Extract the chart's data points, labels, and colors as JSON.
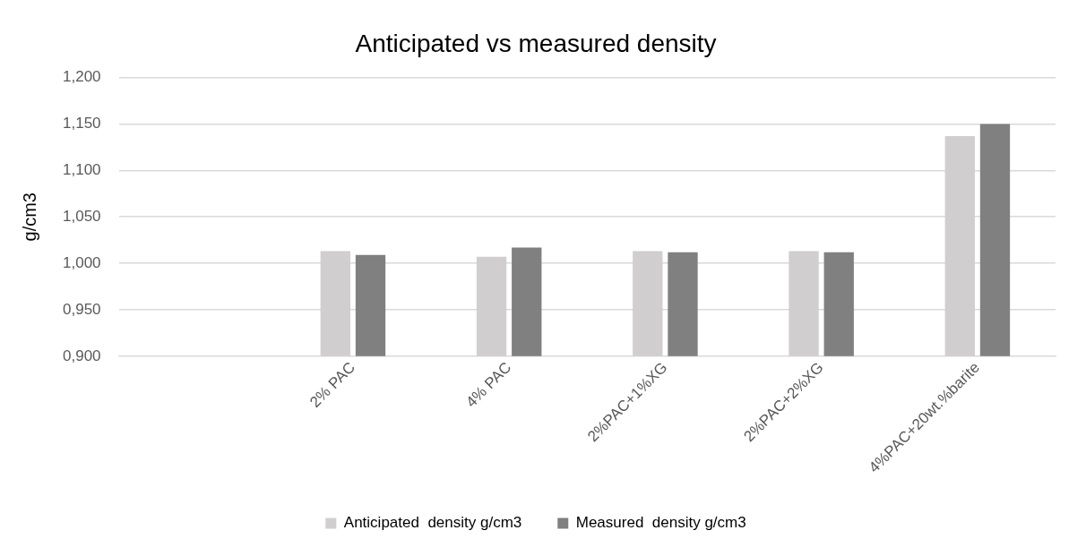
{
  "chart_data": {
    "type": "bar",
    "title": "Anticipated vs measured density",
    "ylabel": "g/cm3",
    "categories": [
      null,
      "2% PAC",
      "4% PAC",
      "2%PAC+1%XG",
      "2%PAC+2%XG",
      "4%PAC+20wt.%barite"
    ],
    "series": [
      {
        "name": "Anticipated  density g/cm3",
        "color": "#d0cecf",
        "values": [
          null,
          1.013,
          1.007,
          1.013,
          1.013,
          1.137
        ]
      },
      {
        "name": "Measured  density g/cm3",
        "color": "#808080",
        "values": [
          null,
          1.009,
          1.017,
          1.012,
          1.012,
          1.15
        ]
      }
    ],
    "ylim": [
      0.9,
      1.2
    ],
    "yticks": [
      {
        "value": 0.9,
        "label": "0,900"
      },
      {
        "value": 0.95,
        "label": "0,950"
      },
      {
        "value": 1.0,
        "label": "1,000"
      },
      {
        "value": 1.05,
        "label": "1,050"
      },
      {
        "value": 1.1,
        "label": "1,100"
      },
      {
        "value": 1.15,
        "label": "1,150"
      },
      {
        "value": 1.2,
        "label": "1,200"
      }
    ],
    "grid": "y",
    "legend": "bottom"
  }
}
